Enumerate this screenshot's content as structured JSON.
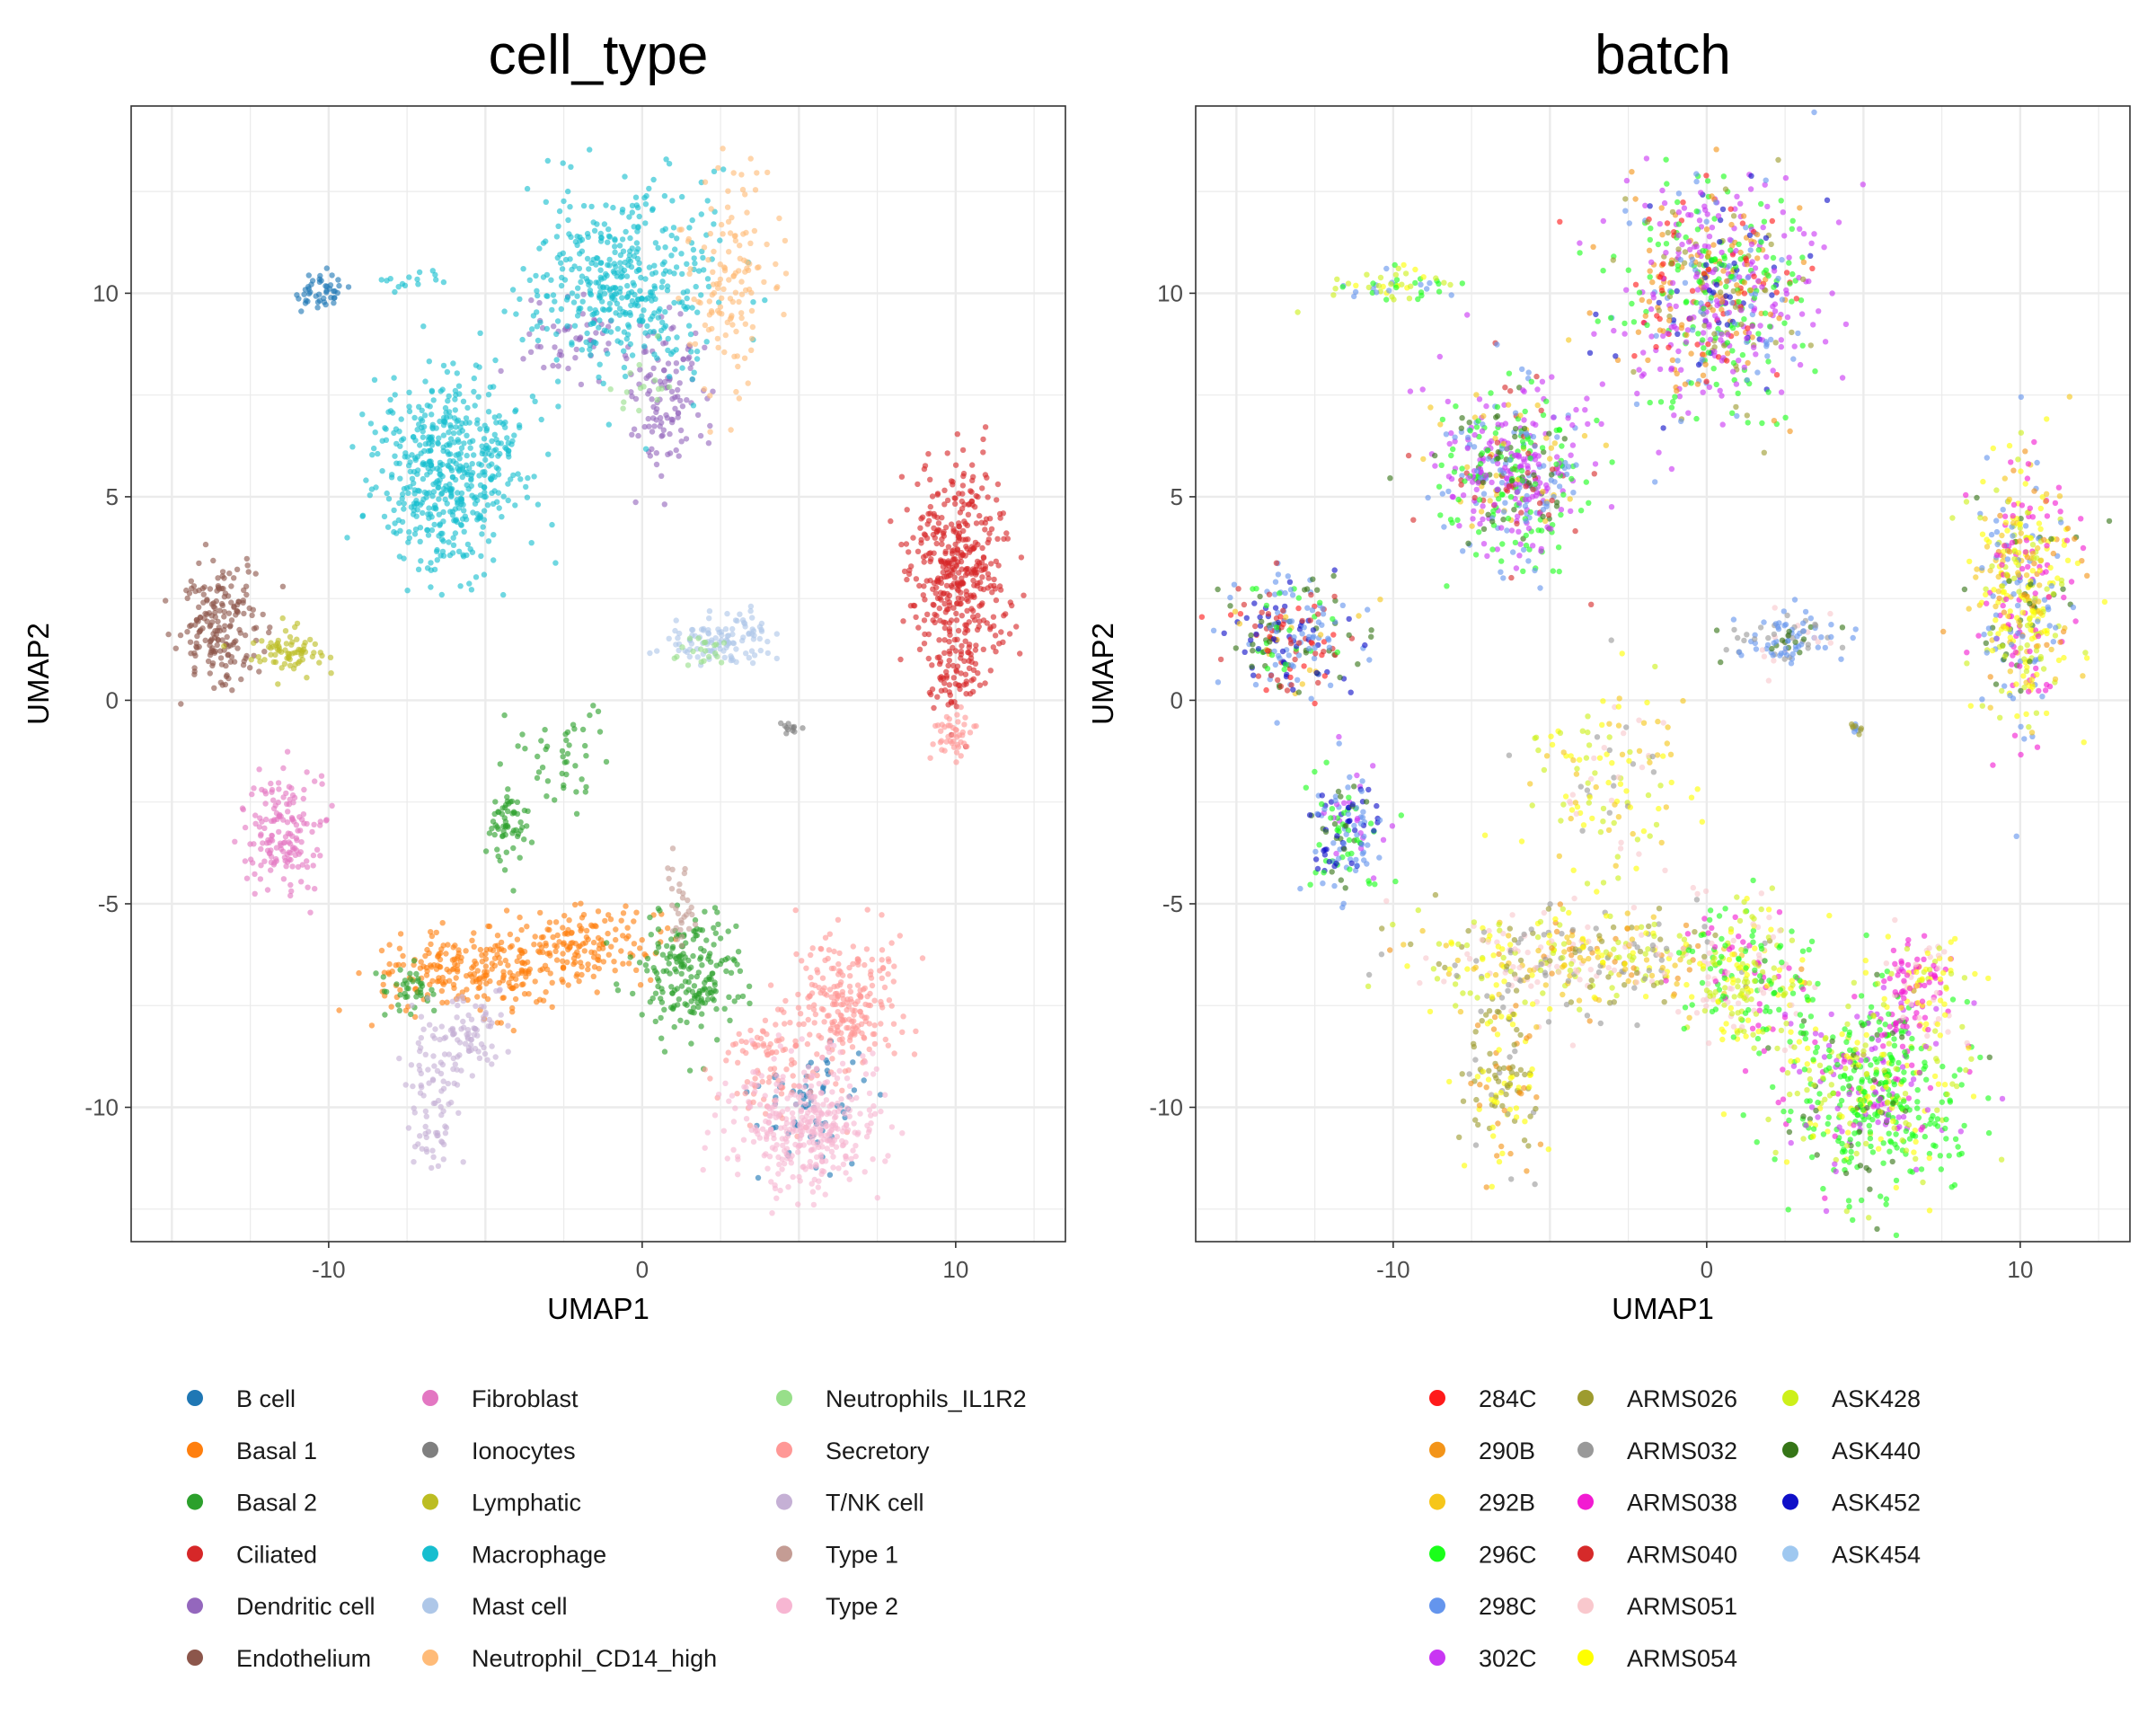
{
  "chart_data": [
    {
      "type": "scatter",
      "title": "cell_type",
      "xlabel": "UMAP1",
      "ylabel": "UMAP2",
      "xlim": [
        -16.3,
        13.5
      ],
      "ylim": [
        -13.3,
        14.6
      ],
      "xticks": [
        -10,
        0,
        10
      ],
      "yticks": [
        -10,
        -5,
        0,
        5,
        10
      ],
      "grid": true,
      "legend_position": "bottom",
      "series": [
        {
          "name": "B cell",
          "color": "#1f77b4",
          "clusters": [
            {
              "cx": -10.3,
              "cy": 10.0,
              "sx": 0.5,
              "sy": 0.25,
              "n": 45
            },
            {
              "cx": 5.5,
              "cy": -9.8,
              "sx": 0.9,
              "sy": 0.7,
              "n": 70
            }
          ]
        },
        {
          "name": "Basal 1",
          "color": "#ff7f0e",
          "clusters": [
            {
              "cx": -5.5,
              "cy": -6.7,
              "sx": 1.6,
              "sy": 0.45,
              "n": 220
            },
            {
              "cx": -2.0,
              "cy": -6.0,
              "sx": 1.2,
              "sy": 0.45,
              "n": 160
            }
          ]
        },
        {
          "name": "Basal 2",
          "color": "#2ca02c",
          "clusters": [
            {
              "cx": 1.5,
              "cy": -6.7,
              "sx": 0.9,
              "sy": 0.8,
              "n": 200
            },
            {
              "cx": -4.2,
              "cy": -3.0,
              "sx": 0.35,
              "sy": 0.5,
              "n": 60
            },
            {
              "cx": -2.3,
              "cy": -1.3,
              "sx": 0.7,
              "sy": 0.6,
              "n": 45
            },
            {
              "cx": -7.5,
              "cy": -7.2,
              "sx": 0.4,
              "sy": 0.3,
              "n": 40
            }
          ]
        },
        {
          "name": "Ciliated",
          "color": "#d62728",
          "clusters": [
            {
              "cx": 10.1,
              "cy": 3.2,
              "sx": 0.8,
              "sy": 1.35,
              "n": 420
            },
            {
              "cx": 10.0,
              "cy": 0.8,
              "sx": 0.5,
              "sy": 0.5,
              "n": 50
            }
          ]
        },
        {
          "name": "Dendritic cell",
          "color": "#9467bd",
          "clusters": [
            {
              "cx": 0.8,
              "cy": 7.5,
              "sx": 0.7,
              "sy": 1.0,
              "n": 120
            },
            {
              "cx": -2.0,
              "cy": 8.8,
              "sx": 0.8,
              "sy": 0.6,
              "n": 50
            }
          ]
        },
        {
          "name": "Endothelium",
          "color": "#8c564b",
          "clusters": [
            {
              "cx": -13.5,
              "cy": 1.8,
              "sx": 0.65,
              "sy": 0.7,
              "n": 190
            }
          ]
        },
        {
          "name": "Fibroblast",
          "color": "#e377c2",
          "clusters": [
            {
              "cx": -11.5,
              "cy": -3.2,
              "sx": 0.65,
              "sy": 0.75,
              "n": 160
            }
          ]
        },
        {
          "name": "Ionocytes",
          "color": "#7f7f7f",
          "clusters": [
            {
              "cx": 4.7,
              "cy": -0.7,
              "sx": 0.15,
              "sy": 0.08,
              "n": 12
            }
          ]
        },
        {
          "name": "Lymphatic",
          "color": "#bcbd22",
          "clusters": [
            {
              "cx": -11.3,
              "cy": 1.2,
              "sx": 0.55,
              "sy": 0.25,
              "n": 70
            }
          ]
        },
        {
          "name": "Macrophage",
          "color": "#17becf",
          "clusters": [
            {
              "cx": -6.2,
              "cy": 5.6,
              "sx": 1.15,
              "sy": 1.15,
              "n": 520
            },
            {
              "cx": -0.5,
              "cy": 10.3,
              "sx": 1.5,
              "sy": 1.2,
              "n": 420
            },
            {
              "cx": -7.5,
              "cy": 10.3,
              "sx": 0.4,
              "sy": 0.15,
              "n": 15
            }
          ]
        },
        {
          "name": "Mast cell",
          "color": "#aec7e8",
          "clusters": [
            {
              "cx": 2.5,
              "cy": 1.5,
              "sx": 0.9,
              "sy": 0.3,
              "n": 110
            }
          ]
        },
        {
          "name": "Neutrophil_CD14_high",
          "color": "#ffbb78",
          "clusters": [
            {
              "cx": 2.8,
              "cy": 10.3,
              "sx": 0.8,
              "sy": 1.3,
              "n": 130
            }
          ]
        },
        {
          "name": "Neutrophils_IL1R2",
          "color": "#98df8a",
          "clusters": [
            {
              "cx": 1.8,
              "cy": 1.2,
              "sx": 0.5,
              "sy": 0.25,
              "n": 20
            },
            {
              "cx": 0.0,
              "cy": 7.8,
              "sx": 0.6,
              "sy": 0.5,
              "n": 15
            }
          ]
        },
        {
          "name": "Secretory",
          "color": "#ff9896",
          "clusters": [
            {
              "cx": 6.5,
              "cy": -7.5,
              "sx": 0.8,
              "sy": 0.8,
              "n": 220
            },
            {
              "cx": 4.3,
              "cy": -8.8,
              "sx": 0.9,
              "sy": 0.8,
              "n": 100
            },
            {
              "cx": 9.9,
              "cy": -0.9,
              "sx": 0.35,
              "sy": 0.35,
              "n": 45
            }
          ]
        },
        {
          "name": "T/NK cell",
          "color": "#c5b0d5",
          "clusters": [
            {
              "cx": -5.5,
              "cy": -8.3,
              "sx": 0.7,
              "sy": 0.5,
              "n": 90
            },
            {
              "cx": -6.7,
              "cy": -10.0,
              "sx": 0.4,
              "sy": 0.9,
              "n": 70
            }
          ]
        },
        {
          "name": "Type 1",
          "color": "#c49c94",
          "clusters": [
            {
              "cx": 1.2,
              "cy": -5.0,
              "sx": 0.25,
              "sy": 0.6,
              "n": 30
            }
          ]
        },
        {
          "name": "Type 2",
          "color": "#f7b6d2",
          "clusters": [
            {
              "cx": 5.3,
              "cy": -10.5,
              "sx": 1.2,
              "sy": 0.8,
              "n": 360
            }
          ]
        }
      ]
    },
    {
      "type": "scatter",
      "title": "batch",
      "xlabel": "UMAP1",
      "ylabel": "UMAP2",
      "xlim": [
        -16.3,
        13.5
      ],
      "ylim": [
        -13.3,
        14.6
      ],
      "xticks": [
        -10,
        0,
        10
      ],
      "yticks": [
        -10,
        -5,
        0,
        5,
        10
      ],
      "grid": true,
      "legend_position": "bottom",
      "series": [
        {
          "name": "284C",
          "color": "#ff1a1a"
        },
        {
          "name": "290B",
          "color": "#f39419"
        },
        {
          "name": "292B",
          "color": "#f6c61a"
        },
        {
          "name": "296C",
          "color": "#1aff1a"
        },
        {
          "name": "298C",
          "color": "#6495ed"
        },
        {
          "name": "302C",
          "color": "#c936f3"
        },
        {
          "name": "ARMS026",
          "color": "#9d9b2f"
        },
        {
          "name": "ARMS032",
          "color": "#999999"
        },
        {
          "name": "ARMS038",
          "color": "#f21bd2"
        },
        {
          "name": "ARMS040",
          "color": "#d62a2a"
        },
        {
          "name": "ARMS051",
          "color": "#f9c8cd"
        },
        {
          "name": "ARMS054",
          "color": "#ffff00"
        },
        {
          "name": "ASK428",
          "color": "#cdf01a"
        },
        {
          "name": "ASK440",
          "color": "#357517"
        },
        {
          "name": "ASK452",
          "color": "#0f0fc8"
        },
        {
          "name": "ASK454",
          "color": "#9fc8f0"
        }
      ],
      "clusters": [
        {
          "cx": -6.2,
          "cy": 5.6,
          "sx": 1.15,
          "sy": 1.15,
          "n": 520,
          "weights": {
            "302C": 4,
            "296C": 3,
            "298C": 2,
            "ARMS040": 1,
            "ASK440": 1,
            "292B": 1
          }
        },
        {
          "cx": 0.2,
          "cy": 10.0,
          "sx": 1.6,
          "sy": 1.4,
          "n": 700,
          "weights": {
            "302C": 4,
            "296C": 3,
            "290B": 2,
            "ASK452": 1,
            "284C": 1,
            "ARMS026": 1,
            "298C": 1
          }
        },
        {
          "cx": 10.1,
          "cy": 2.6,
          "sx": 0.8,
          "sy": 1.6,
          "n": 460,
          "weights": {
            "ARMS054": 3,
            "ARMS038": 2,
            "ASK428": 2,
            "298C": 2,
            "292B": 2,
            "ASK440": 1,
            "290B": 1
          }
        },
        {
          "cx": -13.3,
          "cy": 1.6,
          "sx": 1.0,
          "sy": 0.75,
          "n": 260,
          "weights": {
            "298C": 3,
            "ASK452": 2,
            "ARMS040": 2,
            "ASK440": 2,
            "284C": 1,
            "292B": 1,
            "296C": 1
          }
        },
        {
          "cx": -11.5,
          "cy": -3.2,
          "sx": 0.65,
          "sy": 0.75,
          "n": 160,
          "weights": {
            "298C": 3,
            "296C": 2,
            "ASK452": 2,
            "ASK440": 1,
            "302C": 1
          }
        },
        {
          "cx": 2.5,
          "cy": 1.5,
          "sx": 0.9,
          "sy": 0.3,
          "n": 110,
          "weights": {
            "298C": 3,
            "ARMS032": 2,
            "ASK440": 1,
            "ARMS051": 1
          }
        },
        {
          "cx": -3.0,
          "cy": -2.2,
          "sx": 1.2,
          "sy": 1.2,
          "n": 140,
          "weights": {
            "292B": 2,
            "ARMS054": 2,
            "ASK428": 2,
            "ARMS032": 1,
            "ARMS051": 1
          }
        },
        {
          "cx": -4.0,
          "cy": -6.4,
          "sx": 2.8,
          "sy": 0.65,
          "n": 420,
          "weights": {
            "ARMS054": 2,
            "292B": 2,
            "ARMS051": 2,
            "ARMS032": 2,
            "ASK428": 2,
            "290B": 1,
            "ARMS026": 1
          }
        },
        {
          "cx": -6.5,
          "cy": -9.5,
          "sx": 0.6,
          "sy": 1.1,
          "n": 140,
          "weights": {
            "ARMS026": 2,
            "ARMS054": 2,
            "ARMS032": 1,
            "290B": 1
          }
        },
        {
          "cx": 1.3,
          "cy": -6.7,
          "sx": 1.0,
          "sy": 0.9,
          "n": 260,
          "weights": {
            "ASK428": 2,
            "296C": 2,
            "ARMS038": 1,
            "ARMS051": 1,
            "ARMS054": 1
          }
        },
        {
          "cx": 5.2,
          "cy": -9.6,
          "sx": 1.5,
          "sy": 1.3,
          "n": 600,
          "weights": {
            "296C": 5,
            "302C": 2,
            "ASK428": 2,
            "ARMS054": 1,
            "ARMS038": 1,
            "ASK440": 1
          }
        },
        {
          "cx": 6.8,
          "cy": -7.0,
          "sx": 0.7,
          "sy": 0.7,
          "n": 140,
          "weights": {
            "ARMS038": 3,
            "ARMS054": 2,
            "ARMS051": 2,
            "ASK428": 1
          }
        },
        {
          "cx": -10.0,
          "cy": 10.2,
          "sx": 1.0,
          "sy": 0.25,
          "n": 60,
          "weights": {
            "ASK428": 2,
            "298C": 1,
            "ARMS054": 1,
            "296C": 1
          }
        },
        {
          "cx": 4.8,
          "cy": -0.7,
          "sx": 0.15,
          "sy": 0.08,
          "n": 12,
          "weights": {
            "ARMS026": 1,
            "298C": 1
          }
        }
      ]
    }
  ]
}
